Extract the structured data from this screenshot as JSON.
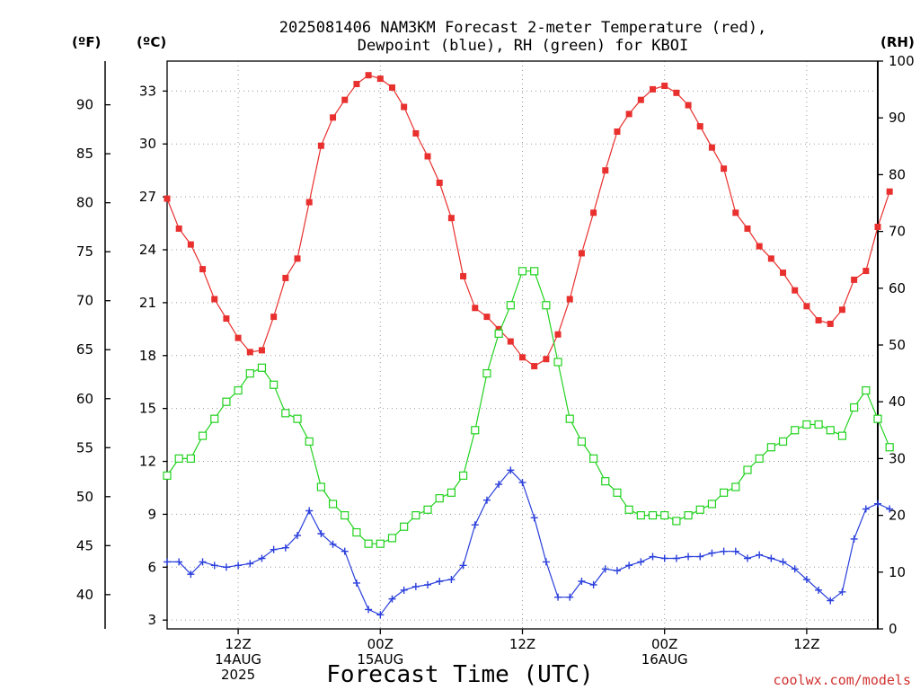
{
  "chart_data": {
    "type": "line",
    "title": [
      "2025081406 NAM3KM Forecast 2-meter Temperature (red),",
      "Dewpoint (blue), RH (green) for KBOI"
    ],
    "xlabel": "Forecast Time (UTC)",
    "credit": "coolwx.com/models",
    "units": {
      "fahrenheit": "(ºF)",
      "celsius": "(ºC)",
      "rh": "(RH)"
    },
    "x_start_hour": 6,
    "x_end_hour": 66,
    "x_ticks": [
      {
        "hour": 12,
        "lines": [
          "12Z",
          "14AUG",
          "2025"
        ]
      },
      {
        "hour": 24,
        "lines": [
          "00Z",
          "15AUG"
        ]
      },
      {
        "hour": 36,
        "lines": [
          "12Z"
        ]
      },
      {
        "hour": 48,
        "lines": [
          "00Z",
          "16AUG"
        ]
      },
      {
        "hour": 60,
        "lines": [
          "12Z"
        ]
      }
    ],
    "celsius_axis": {
      "min": 2.5,
      "max": 34.7,
      "ticks": [
        3,
        6,
        9,
        12,
        15,
        18,
        21,
        24,
        27,
        30,
        33
      ]
    },
    "fahrenheit_axis": {
      "ticks": [
        40,
        45,
        50,
        55,
        60,
        65,
        70,
        75,
        80,
        85,
        90
      ]
    },
    "rh_axis": {
      "min": 0,
      "max": 100,
      "ticks": [
        0,
        10,
        20,
        30,
        40,
        50,
        60,
        70,
        80,
        90,
        100
      ]
    },
    "grid": true,
    "series": [
      {
        "name": "Temperature (red)",
        "color": "#e8302e",
        "marker": "filled-square",
        "axis": "celsius",
        "values": [
          26.9,
          25.2,
          24.3,
          22.9,
          21.2,
          20.1,
          19.0,
          18.2,
          18.3,
          20.2,
          22.4,
          23.5,
          26.7,
          29.9,
          31.5,
          32.5,
          33.4,
          33.9,
          33.7,
          33.2,
          32.1,
          30.6,
          29.3,
          27.8,
          25.8,
          22.5,
          20.7,
          20.2,
          19.5,
          18.8,
          17.9,
          17.4,
          17.8,
          19.2,
          21.2,
          23.8,
          26.1,
          28.5,
          30.7,
          31.7,
          32.5,
          33.1,
          33.3,
          32.9,
          32.2,
          31.0,
          29.8,
          28.6,
          26.1,
          25.2,
          24.2,
          23.5,
          22.7,
          21.7,
          20.8,
          20.0,
          19.8,
          20.6,
          22.3,
          22.8,
          25.3,
          27.3
        ]
      },
      {
        "name": "Dewpoint (blue)",
        "color": "#2a3fdc",
        "marker": "plus",
        "axis": "celsius",
        "values": [
          6.3,
          6.3,
          5.6,
          6.3,
          6.1,
          6.0,
          6.1,
          6.2,
          6.5,
          7.0,
          7.1,
          7.8,
          9.2,
          7.9,
          7.3,
          6.9,
          5.1,
          3.6,
          3.3,
          4.2,
          4.7,
          4.9,
          5.0,
          5.2,
          5.3,
          6.1,
          8.4,
          9.8,
          10.7,
          11.5,
          10.8,
          8.8,
          6.3,
          4.3,
          4.3,
          5.2,
          5.0,
          5.9,
          5.8,
          6.1,
          6.3,
          6.6,
          6.5,
          6.5,
          6.6,
          6.6,
          6.8,
          6.9,
          6.9,
          6.5,
          6.7,
          6.5,
          6.3,
          5.9,
          5.3,
          4.7,
          4.1,
          4.6,
          7.6,
          9.3,
          9.6,
          9.3
        ]
      },
      {
        "name": "RH (green)",
        "color": "#22d21f",
        "marker": "open-square",
        "axis": "rh",
        "values": [
          27,
          30,
          30,
          34,
          37,
          40,
          42,
          45,
          46,
          43,
          38,
          37,
          33,
          25,
          22,
          20,
          17,
          15,
          15,
          16,
          18,
          20,
          21,
          23,
          24,
          27,
          35,
          45,
          52,
          57,
          63,
          63,
          57,
          47,
          37,
          33,
          30,
          26,
          24,
          21,
          20,
          20,
          20,
          19,
          20,
          21,
          22,
          24,
          25,
          28,
          30,
          32,
          33,
          35,
          36,
          36,
          35,
          34,
          39,
          42,
          37,
          32
        ]
      }
    ]
  }
}
